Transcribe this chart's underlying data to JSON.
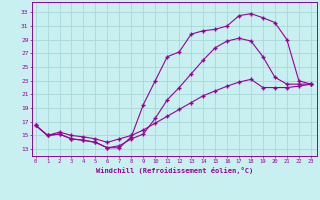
{
  "bg_color": "#c8f0f0",
  "line_color": "#990099",
  "grid_color": "#a8d8d8",
  "xlabel": "Windchill (Refroidissement éolien,°C)",
  "yticks": [
    13,
    15,
    17,
    19,
    21,
    23,
    25,
    27,
    29,
    31,
    33
  ],
  "xticks": [
    0,
    1,
    2,
    3,
    4,
    5,
    6,
    7,
    8,
    9,
    10,
    11,
    12,
    13,
    14,
    15,
    16,
    17,
    18,
    19,
    20,
    21,
    22,
    23
  ],
  "xlim": [
    -0.3,
    23.5
  ],
  "ylim": [
    12.0,
    34.5
  ],
  "line1_x": [
    0,
    1,
    2,
    3,
    4,
    5,
    6,
    7,
    8,
    9,
    10,
    11,
    12,
    13,
    14,
    15,
    16,
    17,
    18,
    19,
    20,
    21,
    22,
    23
  ],
  "line1_y": [
    16.5,
    15.0,
    15.2,
    14.5,
    14.3,
    14.0,
    13.2,
    13.2,
    14.8,
    19.5,
    23.0,
    26.5,
    27.2,
    29.8,
    30.3,
    30.5,
    31.0,
    32.5,
    32.8,
    32.2,
    31.5,
    29.0,
    23.0,
    22.5
  ],
  "line2_x": [
    0,
    1,
    2,
    3,
    4,
    5,
    6,
    7,
    8,
    9,
    10,
    11,
    12,
    13,
    14,
    15,
    16,
    17,
    18,
    19,
    20,
    21,
    22,
    23
  ],
  "line2_y": [
    16.5,
    15.0,
    15.2,
    14.5,
    14.3,
    14.0,
    13.2,
    13.5,
    14.5,
    15.2,
    17.5,
    20.2,
    22.0,
    24.0,
    26.0,
    27.8,
    28.8,
    29.2,
    28.8,
    26.5,
    23.5,
    22.5,
    22.5,
    22.5
  ],
  "line3_x": [
    0,
    1,
    2,
    3,
    4,
    5,
    6,
    7,
    8,
    9,
    10,
    11,
    12,
    13,
    14,
    15,
    16,
    17,
    18,
    19,
    20,
    21,
    22,
    23
  ],
  "line3_y": [
    16.5,
    15.0,
    15.5,
    15.0,
    14.8,
    14.5,
    14.0,
    14.5,
    15.0,
    15.8,
    16.8,
    17.8,
    18.8,
    19.8,
    20.8,
    21.5,
    22.2,
    22.8,
    23.2,
    22.0,
    22.0,
    22.0,
    22.2,
    22.5
  ]
}
